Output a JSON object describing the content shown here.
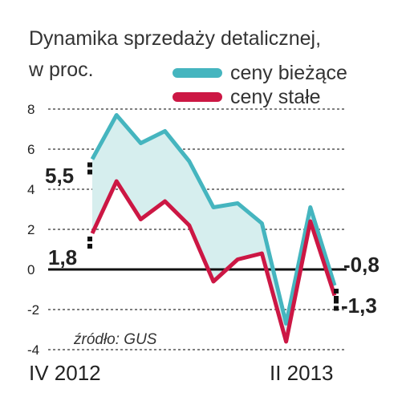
{
  "chart_data": {
    "type": "line",
    "title": "Dynamika sprzedaży detalicznej,",
    "subtitle": "w proc.",
    "source": "źródło: GUS",
    "x_start_label": "IV 2012",
    "x_end_label": "II 2013",
    "ylim": [
      -4,
      8
    ],
    "yticks": [
      "8",
      "6",
      "4",
      "2",
      "0",
      "-2",
      "-4"
    ],
    "grid": true,
    "legend_position": "top-right",
    "series": [
      {
        "name": "ceny bieżące",
        "color": "#45b5bf",
        "values": [
          5.5,
          7.7,
          6.3,
          6.9,
          5.4,
          3.1,
          3.3,
          2.3,
          -2.7,
          3.1,
          -0.8
        ],
        "first_label": "5,5",
        "last_label": "-0,8"
      },
      {
        "name": "ceny stałe",
        "color": "#cc1744",
        "values": [
          1.8,
          4.4,
          2.5,
          3.4,
          2.2,
          -0.6,
          0.5,
          0.8,
          -3.6,
          2.4,
          -1.3
        ],
        "first_label": "1,8",
        "last_label": "-1,3"
      }
    ],
    "fill_color": "#d6eeee"
  }
}
